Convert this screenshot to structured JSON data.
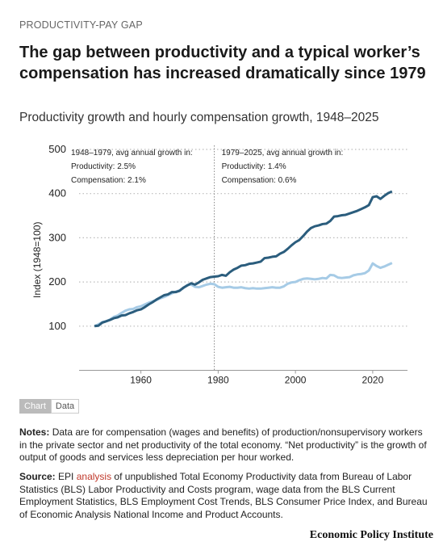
{
  "kicker": "PRODUCTIVITY-PAY GAP",
  "tabs": [
    "Chart",
    "Data"
  ],
  "notes": {
    "label": "Notes:",
    "text": "Data are for compensation (wages and benefits) of production/nonsupervisory workers in the private sector and net productivity of the total economy. “Net productivity” is the growth of output of goods and services less depreciation per hour worked."
  },
  "source": {
    "label": "Source:",
    "before": "EPI",
    "link": "analysis",
    "after": "of unpublished Total Economy Productivity data from Bureau of Labor Statistics (BLS) Labor Productivity and Costs program, wage data from the BLS Current Employment Statistics, BLS Employment Cost Trends, BLS Consumer Price Index, and Bureau of Economic Analysis National Income and Product Accounts."
  },
  "brand": "Economic Policy Institute",
  "chart_data": {
    "type": "line",
    "title": "The gap between productivity and a typical worker’s compensation has increased dramatically since 1979",
    "subtitle": "Productivity growth and hourly compensation growth, 1948–2025",
    "y_label": "Index (1948=100)",
    "xlim": [
      1944,
      2029
    ],
    "xticks": [
      1960,
      1980,
      2000,
      2020
    ],
    "ylim": [
      0,
      500
    ],
    "yticks": [
      100,
      200,
      300,
      400,
      500
    ],
    "grid": true,
    "divider": 1979,
    "annotations": [
      [
        "1948–1979, avg annual growth in:",
        "Productivity: 2.5%",
        "Compensation: 2.1%"
      ],
      [
        "1979–2025, avg annual growth in:",
        "Productivity: 1.4%",
        "Compensation: 0.6%"
      ]
    ],
    "x": [
      1948,
      1949,
      1950,
      1951,
      1952,
      1953,
      1954,
      1955,
      1956,
      1957,
      1958,
      1959,
      1960,
      1961,
      1962,
      1963,
      1964,
      1965,
      1966,
      1967,
      1968,
      1969,
      1970,
      1971,
      1972,
      1973,
      1974,
      1975,
      1976,
      1977,
      1978,
      1979,
      1980,
      1981,
      1982,
      1983,
      1984,
      1985,
      1986,
      1987,
      1988,
      1989,
      1990,
      1991,
      1992,
      1993,
      1994,
      1995,
      1996,
      1997,
      1998,
      1999,
      2000,
      2001,
      2002,
      2003,
      2004,
      2005,
      2006,
      2007,
      2008,
      2009,
      2010,
      2011,
      2012,
      2013,
      2014,
      2015,
      2016,
      2017,
      2018,
      2019,
      2020,
      2021,
      2022,
      2023,
      2024,
      2025
    ],
    "series": [
      {
        "name": "Productivity",
        "color": "#2b5d7d",
        "values": [
          100,
          101,
          108,
          111,
          114,
          118,
          120,
          124,
          125,
          129,
          132,
          136,
          138,
          143,
          149,
          154,
          160,
          165,
          170,
          172,
          177,
          177,
          180,
          187,
          192,
          197,
          194,
          199,
          205,
          208,
          211,
          212,
          213,
          216,
          214,
          222,
          228,
          232,
          237,
          238,
          241,
          242,
          244,
          246,
          254,
          255,
          257,
          258,
          264,
          268,
          275,
          283,
          290,
          295,
          304,
          314,
          322,
          326,
          328,
          331,
          332,
          338,
          348,
          349,
          351,
          352,
          355,
          358,
          361,
          365,
          369,
          374,
          392,
          394,
          388,
          395,
          401,
          405
        ]
      },
      {
        "name": "Compensation",
        "color": "#a6cbe6",
        "values": [
          100,
          104,
          109,
          111,
          115,
          121,
          124,
          130,
          135,
          138,
          139,
          143,
          145,
          149,
          153,
          156,
          159,
          163,
          166,
          170,
          174,
          178,
          181,
          186,
          193,
          194,
          189,
          188,
          191,
          194,
          196,
          195,
          189,
          187,
          188,
          189,
          187,
          187,
          188,
          186,
          185,
          186,
          185,
          185,
          186,
          187,
          188,
          187,
          187,
          190,
          196,
          199,
          200,
          204,
          207,
          208,
          207,
          206,
          207,
          209,
          208,
          216,
          215,
          210,
          209,
          210,
          211,
          215,
          217,
          218,
          220,
          226,
          242,
          236,
          232,
          235,
          239,
          243
        ]
      }
    ]
  }
}
